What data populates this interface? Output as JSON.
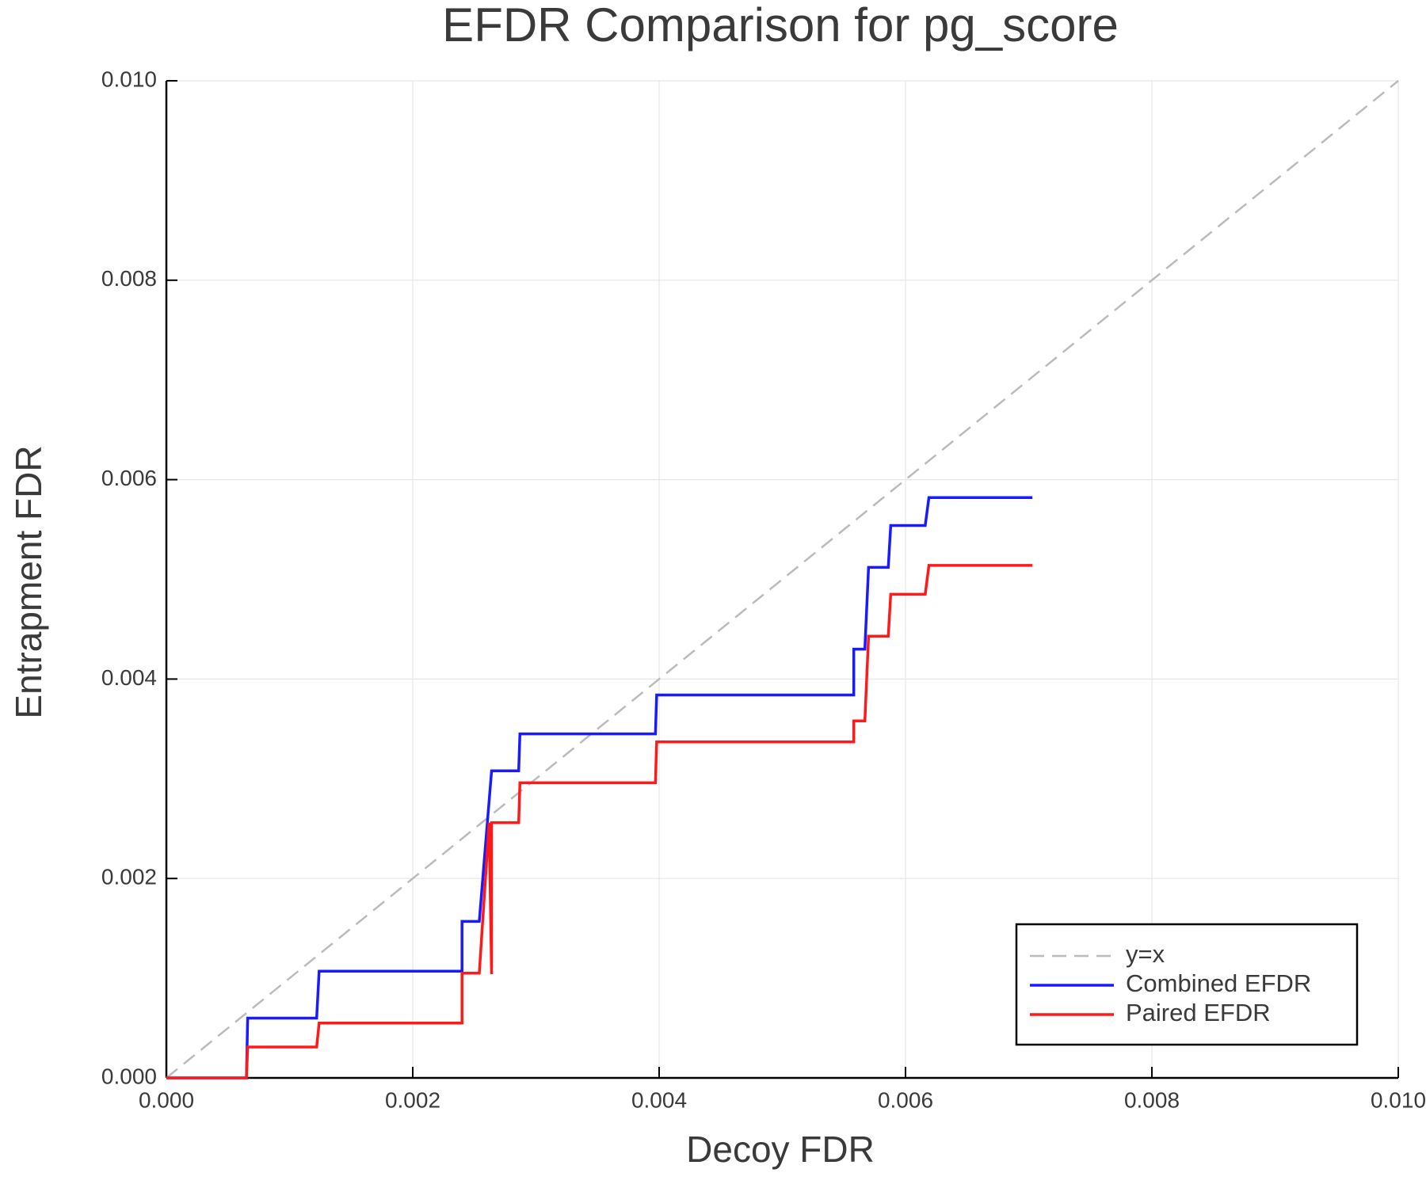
{
  "chart_data": {
    "type": "line",
    "title": "EFDR Comparison for pg_score",
    "x_label": "Decoy FDR",
    "y_label": "Entrapment FDR",
    "xlim": [
      0,
      0.01
    ],
    "ylim": [
      0,
      0.01
    ],
    "xticks": [
      {
        "value": 0,
        "label": "0.000"
      },
      {
        "value": 0.002,
        "label": "0.002"
      },
      {
        "value": 0.004,
        "label": "0.004"
      },
      {
        "value": 0.006,
        "label": "0.006"
      },
      {
        "value": 0.008,
        "label": "0.008"
      },
      {
        "value": 0.01,
        "label": "0.010"
      }
    ],
    "yticks": [
      {
        "value": 0,
        "label": "0.000"
      },
      {
        "value": 0.002,
        "label": "0.002"
      },
      {
        "value": 0.004,
        "label": "0.004"
      },
      {
        "value": 0.006,
        "label": "0.006"
      },
      {
        "value": 0.008,
        "label": "0.008"
      },
      {
        "value": 0.01,
        "label": "0.010"
      }
    ],
    "grid": true,
    "legend": "bottom-right",
    "series": [
      {
        "name": "y=x",
        "color": "#bbbbbb",
        "dashed": true,
        "x": [
          0,
          0.01
        ],
        "values": [
          0,
          0.01
        ]
      },
      {
        "name": "Combined EFDR",
        "color": "#1a1aff",
        "dashed": false,
        "x": [
          0,
          0.00065,
          0.00066,
          0.00122,
          0.00124,
          0.0024,
          0.0024,
          0.00254,
          0.00264,
          0.00286,
          0.00287,
          0.00397,
          0.00398,
          0.00558,
          0.00558,
          0.00567,
          0.0057,
          0.00586,
          0.00588,
          0.00616,
          0.00619,
          0.00703
        ],
        "values": [
          0,
          0,
          0.0006,
          0.0006,
          0.00107,
          0.00107,
          0.00157,
          0.00157,
          0.00308,
          0.00308,
          0.00345,
          0.00345,
          0.00384,
          0.00384,
          0.0043,
          0.0043,
          0.00512,
          0.00512,
          0.00554,
          0.00554,
          0.00582,
          0.00582
        ]
      },
      {
        "name": "Paired EFDR",
        "color": "#ff1a1a",
        "dashed": false,
        "x": [
          0,
          0.00065,
          0.00066,
          0.00122,
          0.00124,
          0.0024,
          0.0024,
          0.00254,
          0.00262,
          0.00264,
          0.00264,
          0.00286,
          0.00287,
          0.00397,
          0.00398,
          0.00558,
          0.00558,
          0.00567,
          0.0057,
          0.00586,
          0.00588,
          0.00616,
          0.00619,
          0.00703
        ],
        "values": [
          0,
          0,
          0.00031,
          0.00031,
          0.00055,
          0.00055,
          0.00105,
          0.00105,
          0.00256,
          0.00104,
          0.00256,
          0.00256,
          0.00296,
          0.00296,
          0.00337,
          0.00337,
          0.00358,
          0.00358,
          0.00443,
          0.00443,
          0.00485,
          0.00485,
          0.00514,
          0.00514
        ]
      }
    ]
  }
}
